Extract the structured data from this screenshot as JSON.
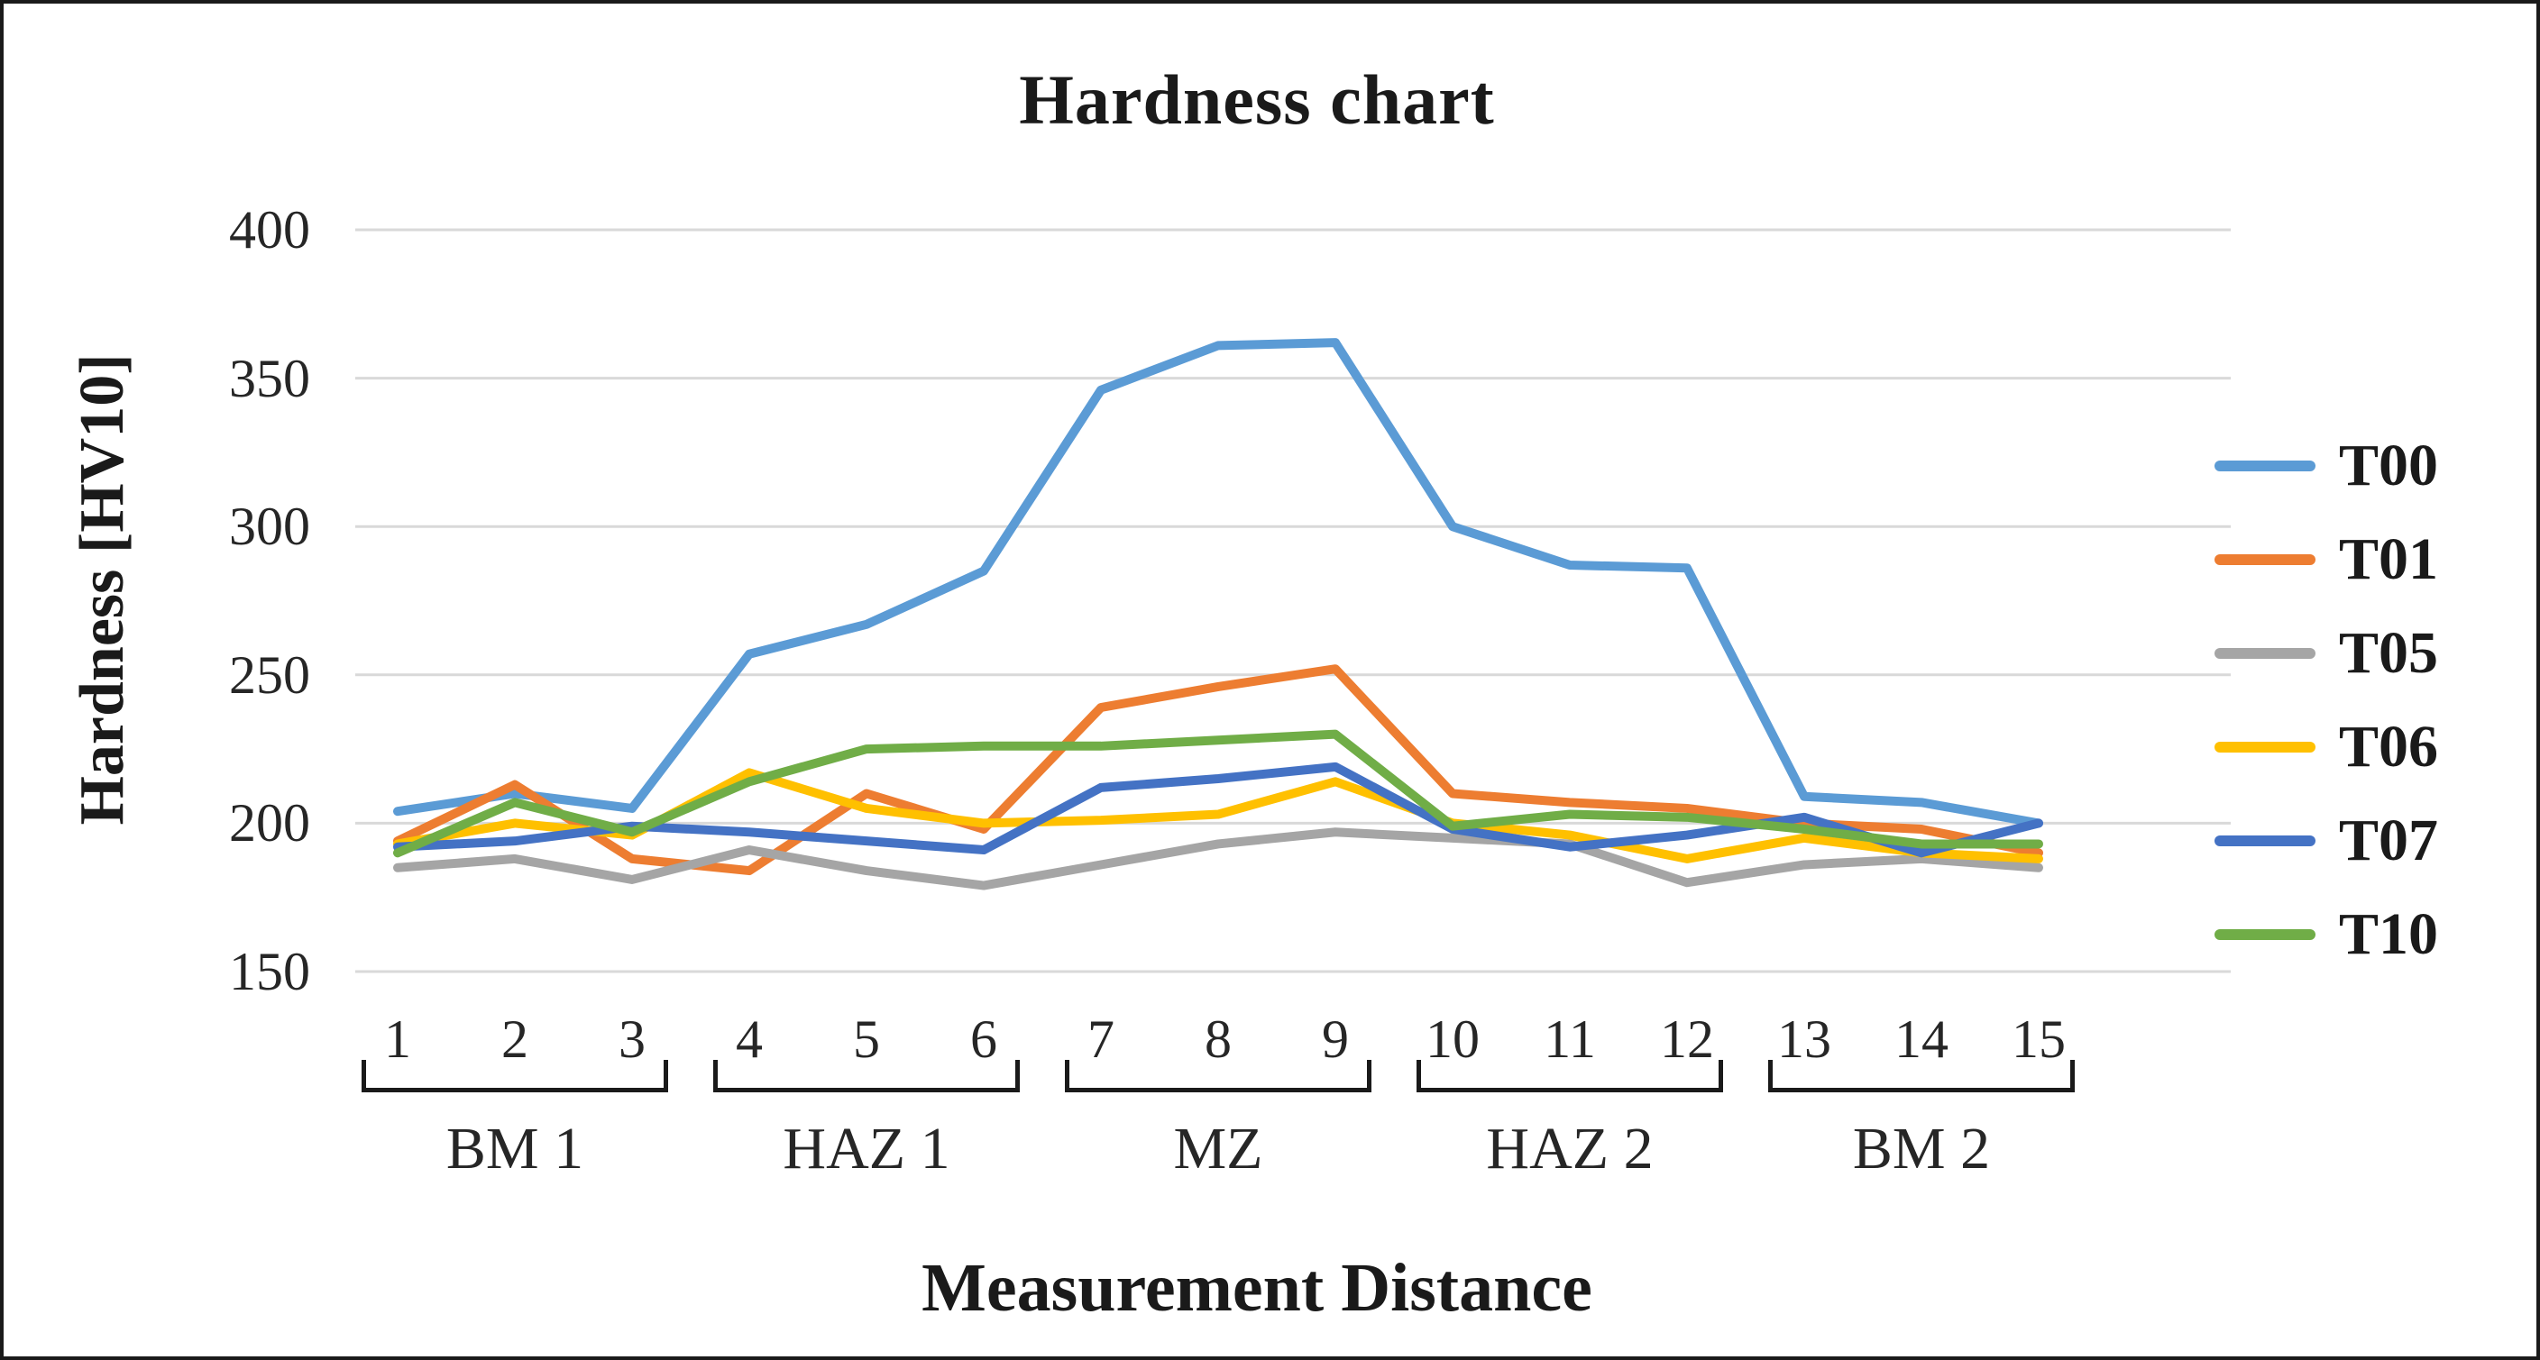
{
  "chart_data": {
    "type": "line",
    "title": "Hardness chart",
    "xlabel": "Measurement Distance",
    "ylabel": "Hardness [HV10]",
    "x": [
      1,
      2,
      3,
      4,
      5,
      6,
      7,
      8,
      9,
      10,
      11,
      12,
      13,
      14,
      15
    ],
    "y_ticks": [
      400,
      350,
      300,
      250,
      200,
      150
    ],
    "ylim": [
      150,
      400
    ],
    "grid": "horizontal",
    "legend_position": "right",
    "grid_color": "#d9d9d9",
    "series": [
      {
        "name": "T00",
        "color": "#5b9bd5",
        "values": [
          204,
          210,
          205,
          257,
          267,
          285,
          346,
          361,
          362,
          300,
          287,
          286,
          209,
          207,
          200
        ]
      },
      {
        "name": "T01",
        "color": "#ed7d31",
        "values": [
          194,
          213,
          188,
          184,
          210,
          198,
          239,
          246,
          252,
          210,
          207,
          205,
          200,
          198,
          190
        ]
      },
      {
        "name": "T05",
        "color": "#a5a5a5",
        "values": [
          185,
          188,
          181,
          191,
          184,
          179,
          186,
          193,
          197,
          195,
          193,
          180,
          186,
          188,
          185
        ]
      },
      {
        "name": "T06",
        "color": "#ffc000",
        "values": [
          193,
          200,
          196,
          217,
          205,
          200,
          201,
          203,
          214,
          200,
          196,
          188,
          195,
          190,
          188
        ]
      },
      {
        "name": "T07",
        "color": "#4472c4",
        "values": [
          192,
          194,
          199,
          197,
          194,
          191,
          212,
          215,
          219,
          198,
          192,
          196,
          202,
          190,
          200
        ]
      },
      {
        "name": "T10",
        "color": "#70ad47",
        "values": [
          190,
          207,
          197,
          214,
          225,
          226,
          226,
          228,
          230,
          199,
          203,
          202,
          198,
          193,
          193
        ]
      }
    ],
    "groups": [
      {
        "label": "BM 1",
        "from": 1,
        "to": 3
      },
      {
        "label": "HAZ 1",
        "from": 4,
        "to": 6
      },
      {
        "label": "MZ",
        "from": 7,
        "to": 9
      },
      {
        "label": "HAZ 2",
        "from": 10,
        "to": 12
      },
      {
        "label": "BM 2",
        "from": 13,
        "to": 15
      }
    ]
  }
}
